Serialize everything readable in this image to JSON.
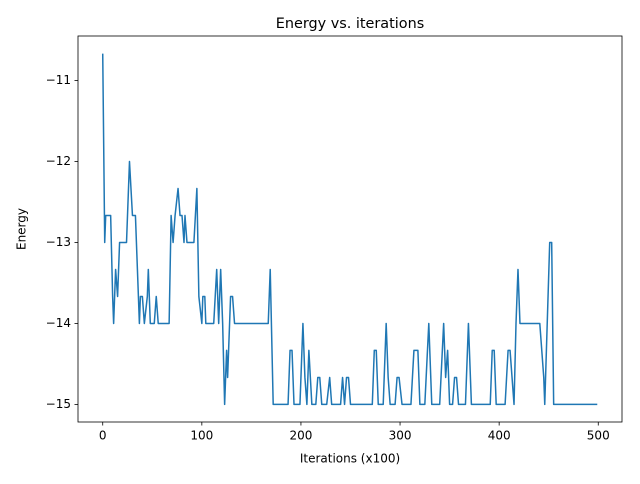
{
  "chart_data": {
    "type": "line",
    "title": "Energy vs. iterations",
    "x_label": "Iterations (x100)",
    "y_label": "Energy",
    "series": [
      {
        "color": "#1f77b4",
        "x": [
          0,
          2,
          3,
          8,
          10,
          11,
          13,
          15,
          16,
          17,
          24,
          27,
          30,
          33,
          35,
          37,
          38,
          40,
          42,
          45,
          46,
          48,
          52,
          54,
          56,
          67,
          69,
          71,
          73,
          76,
          78,
          80,
          82,
          83,
          85,
          92,
          95,
          97,
          100,
          101,
          103,
          104,
          112,
          115,
          117,
          119,
          121,
          123,
          125,
          126,
          129,
          131,
          133,
          167,
          169,
          172,
          187,
          189,
          191,
          193,
          199,
          202,
          204,
          206,
          208,
          211,
          215,
          217,
          219,
          221,
          226,
          229,
          231,
          240,
          242,
          244,
          246,
          248,
          250,
          272,
          274,
          276,
          278,
          283,
          286,
          288,
          290,
          295,
          297,
          299,
          302,
          311,
          314,
          318,
          320,
          325,
          329,
          332,
          340,
          344,
          346,
          348,
          350,
          353,
          355,
          357,
          359,
          366,
          369,
          372,
          391,
          393,
          395,
          397,
          406,
          409,
          411,
          413,
          415,
          417,
          419,
          421,
          441,
          445,
          446,
          451,
          453,
          455,
          499
        ],
        "values": [
          -10.667,
          -13,
          -12.667,
          -12.667,
          -13.667,
          -14,
          -13.333,
          -13.667,
          -13.333,
          -13,
          -13,
          -12,
          -12.667,
          -12.667,
          -13.333,
          -14,
          -13.667,
          -13.667,
          -14,
          -13.667,
          -13.333,
          -14,
          -14,
          -13.667,
          -14,
          -14,
          -12.667,
          -13,
          -12.667,
          -12.333,
          -12.667,
          -12.667,
          -13,
          -12.667,
          -13,
          -13,
          -12.333,
          -13.667,
          -14,
          -13.667,
          -13.667,
          -14,
          -14,
          -13.333,
          -14,
          -13.333,
          -14,
          -15,
          -14.333,
          -14.667,
          -13.667,
          -13.667,
          -14,
          -14,
          -13.333,
          -15,
          -15,
          -14.333,
          -14.333,
          -15,
          -15,
          -14,
          -14.667,
          -15,
          -14.333,
          -15,
          -15,
          -14.667,
          -14.667,
          -15,
          -15,
          -14.667,
          -15,
          -15,
          -14.667,
          -15,
          -14.667,
          -14.667,
          -15,
          -15,
          -14.333,
          -14.333,
          -15,
          -15,
          -14,
          -14.667,
          -15,
          -15,
          -14.667,
          -14.667,
          -15,
          -15,
          -14.333,
          -14.333,
          -15,
          -15,
          -14,
          -15,
          -15,
          -14,
          -14.667,
          -14.333,
          -15,
          -15,
          -14.667,
          -14.667,
          -15,
          -15,
          -14,
          -15,
          -15,
          -14.333,
          -14.333,
          -15,
          -15,
          -14.333,
          -14.333,
          -14.667,
          -15,
          -14,
          -13.333,
          -14,
          -14,
          -14.667,
          -15,
          -13,
          -13,
          -15,
          -15
        ]
      }
    ],
    "xlim": [
      -24.95,
      523.95
    ],
    "ylim": [
      -15.217,
      -10.45
    ],
    "xticks": [
      0,
      100,
      200,
      300,
      400,
      500
    ],
    "yticks": [
      {
        "value": -15,
        "label": "−15"
      },
      {
        "value": -14,
        "label": "−14"
      },
      {
        "value": -13,
        "label": "−13"
      },
      {
        "value": -12,
        "label": "−12"
      },
      {
        "value": -11,
        "label": "−11"
      }
    ]
  }
}
